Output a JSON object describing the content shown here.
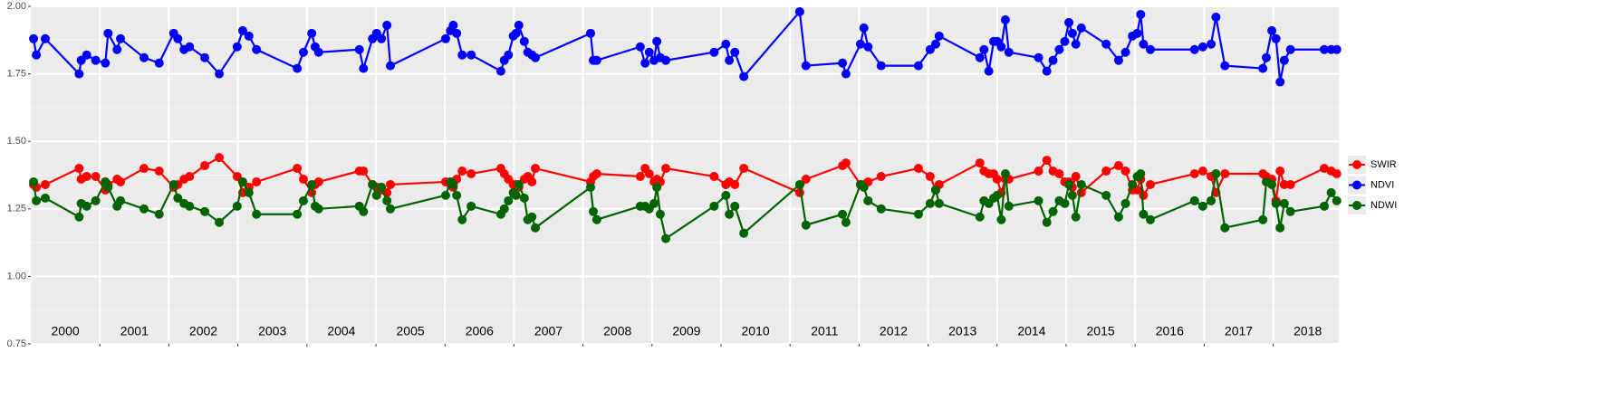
{
  "chart_data": {
    "type": "line",
    "x": [
      2000.04,
      2000.08,
      2000.21,
      2000.7,
      2000.73,
      2000.81,
      2000.94,
      2001.08,
      2001.12,
      2001.25,
      2001.3,
      2001.64,
      2001.86,
      2002.07,
      2002.13,
      2002.22,
      2002.3,
      2002.52,
      2002.73,
      2002.99,
      2003.07,
      2003.16,
      2003.27,
      2003.86,
      2003.95,
      2004.07,
      2004.12,
      2004.17,
      2004.76,
      2004.82,
      2004.95,
      2005.01,
      2005.08,
      2005.16,
      2005.21,
      2006.01,
      2006.08,
      2006.12,
      2006.17,
      2006.25,
      2006.38,
      2006.81,
      2006.86,
      2006.92,
      2006.99,
      2007.03,
      2007.07,
      2007.15,
      2007.2,
      2007.26,
      2007.31,
      2008.11,
      2008.15,
      2008.2,
      2008.83,
      2008.9,
      2008.96,
      2009.03,
      2009.07,
      2009.12,
      2009.2,
      2009.9,
      2010.07,
      2010.12,
      2010.2,
      2010.33,
      2011.14,
      2011.23,
      2011.76,
      2011.81,
      2012.02,
      2012.07,
      2012.13,
      2012.32,
      2012.86,
      2013.03,
      2013.11,
      2013.16,
      2013.75,
      2013.81,
      2013.88,
      2013.95,
      2014.0,
      2014.06,
      2014.12,
      2014.17,
      2014.6,
      2014.72,
      2014.81,
      2014.9,
      2014.98,
      2015.04,
      2015.09,
      2015.14,
      2015.22,
      2015.58,
      2015.76,
      2015.86,
      2015.96,
      2016.03,
      2016.08,
      2016.12,
      2016.22,
      2016.86,
      2016.98,
      2017.1,
      2017.17,
      2017.3,
      2017.85,
      2017.9,
      2017.98,
      2018.04,
      2018.1,
      2018.16,
      2018.25,
      2018.74,
      2018.84,
      2018.92
    ],
    "series": [
      {
        "name": "SWIR",
        "color": "#ff0000",
        "values": [
          1.34,
          1.33,
          1.34,
          1.4,
          1.36,
          1.37,
          1.37,
          1.32,
          1.34,
          1.36,
          1.35,
          1.4,
          1.39,
          1.33,
          1.34,
          1.36,
          1.37,
          1.41,
          1.44,
          1.37,
          1.31,
          1.33,
          1.35,
          1.4,
          1.36,
          1.31,
          1.34,
          1.35,
          1.39,
          1.39,
          1.34,
          1.33,
          1.32,
          1.31,
          1.34,
          1.35,
          1.34,
          1.33,
          1.36,
          1.39,
          1.38,
          1.4,
          1.38,
          1.36,
          1.34,
          1.34,
          1.33,
          1.36,
          1.37,
          1.35,
          1.4,
          1.35,
          1.37,
          1.38,
          1.37,
          1.4,
          1.38,
          1.35,
          1.36,
          1.35,
          1.4,
          1.37,
          1.34,
          1.35,
          1.34,
          1.4,
          1.31,
          1.36,
          1.41,
          1.42,
          1.34,
          1.34,
          1.35,
          1.37,
          1.4,
          1.37,
          1.32,
          1.34,
          1.42,
          1.39,
          1.38,
          1.38,
          1.36,
          1.31,
          1.36,
          1.36,
          1.39,
          1.43,
          1.39,
          1.38,
          1.35,
          1.35,
          1.33,
          1.37,
          1.31,
          1.39,
          1.41,
          1.39,
          1.32,
          1.32,
          1.36,
          1.3,
          1.34,
          1.38,
          1.39,
          1.37,
          1.31,
          1.38,
          1.38,
          1.37,
          1.36,
          1.28,
          1.39,
          1.34,
          1.34,
          1.4,
          1.39,
          1.38
        ]
      },
      {
        "name": "NDVI",
        "color": "#0000ff",
        "values": [
          1.88,
          1.82,
          1.88,
          1.75,
          1.8,
          1.82,
          1.8,
          1.79,
          1.9,
          1.84,
          1.88,
          1.81,
          1.79,
          1.9,
          1.88,
          1.84,
          1.85,
          1.81,
          1.75,
          1.85,
          1.91,
          1.89,
          1.84,
          1.77,
          1.83,
          1.9,
          1.85,
          1.83,
          1.84,
          1.77,
          1.88,
          1.9,
          1.88,
          1.93,
          1.78,
          1.88,
          1.91,
          1.93,
          1.9,
          1.82,
          1.82,
          1.76,
          1.8,
          1.82,
          1.89,
          1.9,
          1.93,
          1.87,
          1.83,
          1.82,
          1.81,
          1.9,
          1.8,
          1.8,
          1.85,
          1.79,
          1.83,
          1.8,
          1.87,
          1.81,
          1.8,
          1.83,
          1.86,
          1.8,
          1.83,
          1.74,
          1.98,
          1.78,
          1.79,
          1.75,
          1.86,
          1.92,
          1.85,
          1.78,
          1.78,
          1.84,
          1.86,
          1.89,
          1.81,
          1.84,
          1.76,
          1.87,
          1.87,
          1.85,
          1.95,
          1.83,
          1.81,
          1.76,
          1.8,
          1.84,
          1.87,
          1.94,
          1.9,
          1.86,
          1.92,
          1.86,
          1.8,
          1.83,
          1.89,
          1.9,
          1.97,
          1.86,
          1.84,
          1.84,
          1.85,
          1.86,
          1.96,
          1.78,
          1.77,
          1.81,
          1.91,
          1.88,
          1.72,
          1.8,
          1.84,
          1.84,
          1.84,
          1.84
        ]
      },
      {
        "name": "NDWI",
        "color": "#006400",
        "values": [
          1.35,
          1.28,
          1.29,
          1.22,
          1.27,
          1.26,
          1.28,
          1.35,
          1.33,
          1.26,
          1.28,
          1.25,
          1.23,
          1.34,
          1.29,
          1.27,
          1.26,
          1.24,
          1.2,
          1.26,
          1.35,
          1.31,
          1.23,
          1.23,
          1.28,
          1.34,
          1.26,
          1.25,
          1.26,
          1.24,
          1.34,
          1.3,
          1.33,
          1.28,
          1.25,
          1.3,
          1.35,
          1.34,
          1.3,
          1.21,
          1.26,
          1.23,
          1.25,
          1.28,
          1.31,
          1.3,
          1.34,
          1.29,
          1.21,
          1.22,
          1.18,
          1.33,
          1.24,
          1.21,
          1.26,
          1.26,
          1.25,
          1.27,
          1.33,
          1.23,
          1.14,
          1.26,
          1.3,
          1.23,
          1.26,
          1.16,
          1.34,
          1.19,
          1.23,
          1.2,
          1.34,
          1.33,
          1.28,
          1.25,
          1.23,
          1.27,
          1.32,
          1.27,
          1.22,
          1.28,
          1.27,
          1.29,
          1.3,
          1.21,
          1.38,
          1.26,
          1.28,
          1.2,
          1.24,
          1.28,
          1.27,
          1.34,
          1.3,
          1.22,
          1.34,
          1.3,
          1.22,
          1.27,
          1.34,
          1.37,
          1.38,
          1.23,
          1.21,
          1.28,
          1.26,
          1.28,
          1.38,
          1.18,
          1.21,
          1.35,
          1.34,
          1.27,
          1.18,
          1.27,
          1.24,
          1.26,
          1.31,
          1.28
        ]
      }
    ],
    "year_labels": [
      "2000",
      "2001",
      "2002",
      "2003",
      "2004",
      "2005",
      "2006",
      "2007",
      "2008",
      "2009",
      "2010",
      "2011",
      "2012",
      "2013",
      "2014",
      "2015",
      "2016",
      "2017",
      "2018"
    ],
    "xlim": [
      2000,
      2018.95
    ],
    "xticks": [
      2001,
      2002,
      2003,
      2004,
      2005,
      2006,
      2007,
      2008,
      2009,
      2010,
      2011,
      2012,
      2013,
      2014,
      2015,
      2016,
      2017,
      2018
    ],
    "ylim": [
      0.75,
      2.0
    ],
    "yticks": [
      {
        "value": 0.75,
        "label": "0.75"
      },
      {
        "value": 1.0,
        "label": "1.00"
      },
      {
        "value": 1.25,
        "label": "1.25"
      },
      {
        "value": 1.5,
        "label": "1.50"
      },
      {
        "value": 1.75,
        "label": "1.75"
      },
      {
        "value": 2.0,
        "label": "2.00"
      }
    ],
    "grid": true,
    "legend": "right"
  }
}
